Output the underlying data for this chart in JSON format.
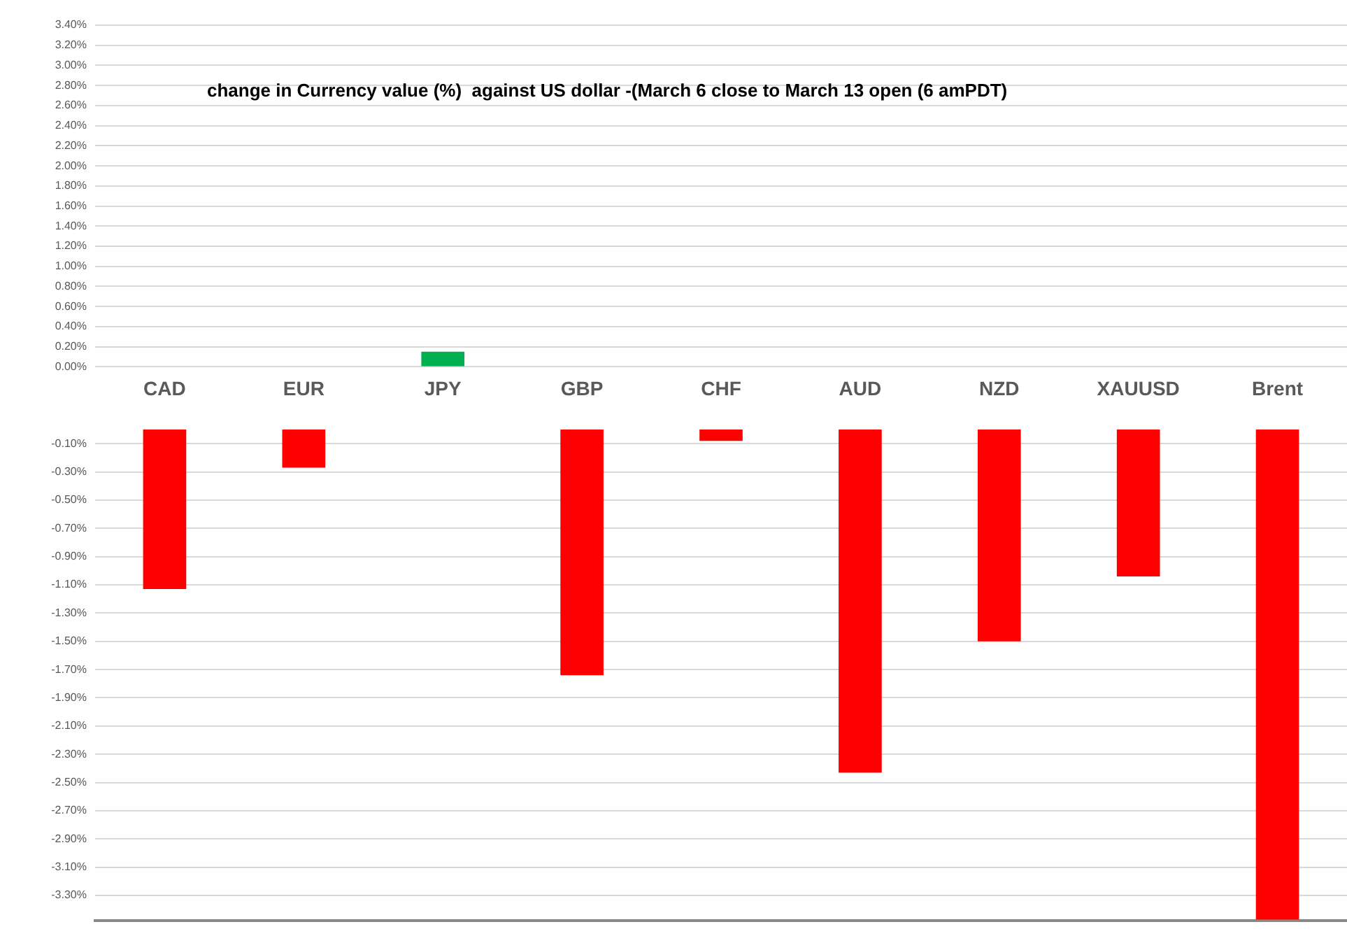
{
  "chart_data": [
    {
      "type": "bar",
      "title": "change in Currency value (%)  against US dollar -(March 6 close to March 13 open (6 amPDT)",
      "categories": [
        "CAD",
        "EUR",
        "JPY",
        "GBP",
        "CHF",
        "AUD",
        "NZD",
        "XAUUSD",
        "Brent"
      ],
      "series": [
        {
          "color": "#00b050",
          "values": [
            null,
            null,
            0.15,
            null,
            null,
            null,
            null,
            null,
            null
          ]
        }
      ],
      "ylim": [
        0,
        3.4
      ],
      "yticks": [
        {
          "value": 0,
          "label": "0.00%"
        },
        {
          "value": 0.2,
          "label": "0.20%"
        },
        {
          "value": 0.4,
          "label": "0.40%"
        },
        {
          "value": 0.6,
          "label": "0.60%"
        },
        {
          "value": 0.8,
          "label": "0.80%"
        },
        {
          "value": 1.0,
          "label": "1.00%"
        },
        {
          "value": 1.2,
          "label": "1.20%"
        },
        {
          "value": 1.4,
          "label": "1.40%"
        },
        {
          "value": 1.6,
          "label": "1.60%"
        },
        {
          "value": 1.8,
          "label": "1.80%"
        },
        {
          "value": 2.0,
          "label": "2.00%"
        },
        {
          "value": 2.2,
          "label": "2.20%"
        },
        {
          "value": 2.4,
          "label": "2.40%"
        },
        {
          "value": 2.6,
          "label": "2.60%"
        },
        {
          "value": 2.8,
          "label": "2.80%"
        },
        {
          "value": 3.0,
          "label": "3.00%"
        },
        {
          "value": 3.2,
          "label": "3.20%"
        },
        {
          "value": 3.4,
          "label": "3.40%"
        }
      ],
      "grid": "y",
      "legend": false
    },
    {
      "type": "bar",
      "categories": [
        null,
        null,
        null,
        null,
        null,
        null,
        null,
        null,
        null
      ],
      "series": [
        {
          "color": "#ff0000",
          "values": [
            -1.13,
            -0.27,
            null,
            -1.74,
            -0.08,
            -2.43,
            -1.5,
            -1.04,
            -3.47
          ]
        }
      ],
      "ylim": [
        -3.48,
        0
      ],
      "yticks": [
        {
          "value": -0.1,
          "label": "-0.10%"
        },
        {
          "value": -0.3,
          "label": "-0.30%"
        },
        {
          "value": -0.5,
          "label": "-0.50%"
        },
        {
          "value": -0.7,
          "label": "-0.70%"
        },
        {
          "value": -0.9,
          "label": "-0.90%"
        },
        {
          "value": -1.1,
          "label": "-1.10%"
        },
        {
          "value": -1.3,
          "label": "-1.30%"
        },
        {
          "value": -1.5,
          "label": "-1.50%"
        },
        {
          "value": -1.7,
          "label": "-1.70%"
        },
        {
          "value": -1.9,
          "label": "-1.90%"
        },
        {
          "value": -2.1,
          "label": "-2.10%"
        },
        {
          "value": -2.3,
          "label": "-2.30%"
        },
        {
          "value": -2.5,
          "label": "-2.50%"
        },
        {
          "value": -2.7,
          "label": "-2.70%"
        },
        {
          "value": -2.9,
          "label": "-2.90%"
        },
        {
          "value": -3.1,
          "label": "-3.10%"
        },
        {
          "value": -3.3,
          "label": "-3.30%"
        }
      ],
      "grid": "y",
      "legend": false,
      "tick_labels": "y"
    }
  ]
}
